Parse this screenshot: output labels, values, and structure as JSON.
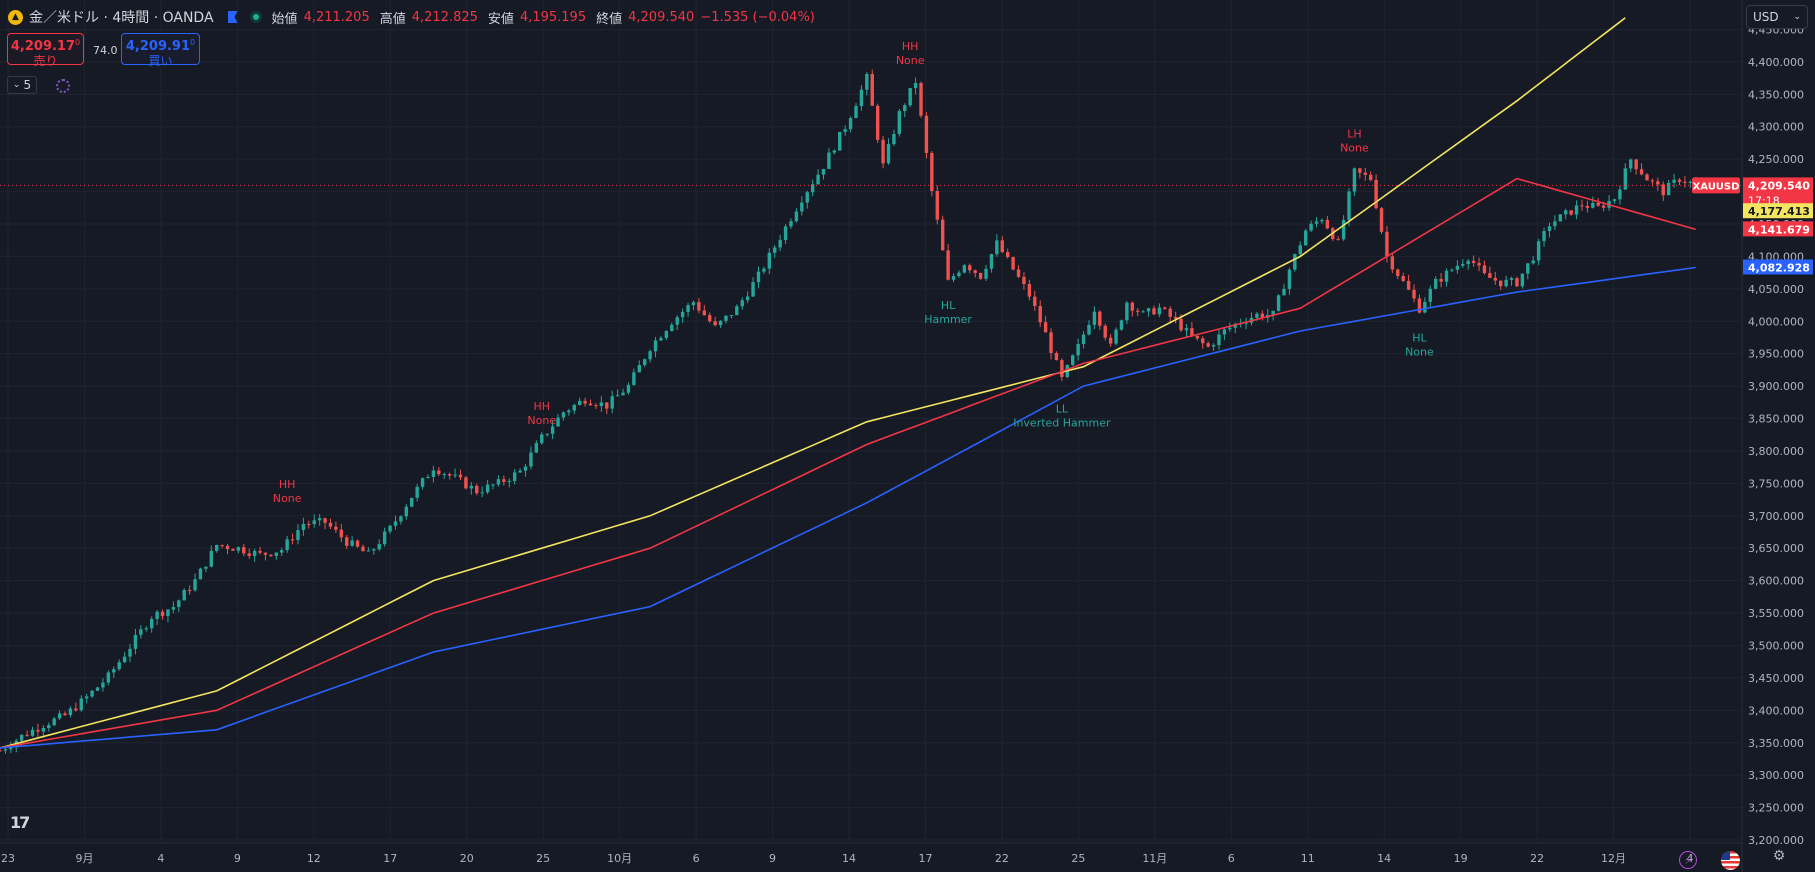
{
  "legend": {
    "symbol_icon": "gold-coin-icon",
    "title": "金／米ドル · 4時間 · OANDA",
    "open_label": "始値",
    "open": "4,211.205",
    "high_label": "高値",
    "high": "4,212.825",
    "low_label": "安値",
    "low": "4,195.195",
    "close_label": "終値",
    "close": "4,209.540",
    "change": "−1.535 (−0.04%)"
  },
  "trade": {
    "sell_price": "4,209.17",
    "sell_sup": "0",
    "sell_label": "売り",
    "spread": "74.0",
    "buy_price": "4,209.91",
    "buy_sup": "0",
    "buy_label": "買い"
  },
  "indicators_button": {
    "count": "5"
  },
  "currency": {
    "label": "USD"
  },
  "logo": "17",
  "colors": {
    "background": "#161a25",
    "grid": "#1f2431",
    "up": "#26a69a",
    "down": "#ef5350",
    "ma_fast": "#f4e55f",
    "ma_mid": "#f23645",
    "ma_slow": "#2962ff",
    "text": "#b2b5be"
  },
  "chart_data": {
    "type": "candlestick",
    "symbol": "XAUUSD",
    "interval": "4時間",
    "ylim": [
      3180,
      4480
    ],
    "y_ticks": [
      3200,
      3250,
      3300,
      3350,
      3400,
      3450,
      3500,
      3550,
      3600,
      3650,
      3700,
      3750,
      3800,
      3850,
      3900,
      3950,
      4000,
      4050,
      4100,
      4150,
      4200,
      4250,
      4300,
      4350,
      4400,
      4450
    ],
    "x_ticks": [
      "23",
      "9月",
      "4",
      "9",
      "12",
      "17",
      "20",
      "25",
      "10月",
      "6",
      "9",
      "14",
      "17",
      "22",
      "25",
      "11月",
      "6",
      "11",
      "14",
      "19",
      "22",
      "12月",
      "4"
    ],
    "price_trend": [
      [
        0,
        3338
      ],
      [
        4,
        3360
      ],
      [
        8,
        3378
      ],
      [
        12,
        3392
      ],
      [
        16,
        3420
      ],
      [
        20,
        3452
      ],
      [
        24,
        3498
      ],
      [
        28,
        3545
      ],
      [
        32,
        3560
      ],
      [
        36,
        3600
      ],
      [
        40,
        3655
      ],
      [
        44,
        3650
      ],
      [
        48,
        3640
      ],
      [
        52,
        3648
      ],
      [
        56,
        3688
      ],
      [
        60,
        3690
      ],
      [
        64,
        3660
      ],
      [
        68,
        3640
      ],
      [
        72,
        3680
      ],
      [
        76,
        3730
      ],
      [
        80,
        3775
      ],
      [
        84,
        3758
      ],
      [
        88,
        3738
      ],
      [
        92,
        3750
      ],
      [
        96,
        3768
      ],
      [
        100,
        3820
      ],
      [
        104,
        3860
      ],
      [
        108,
        3880
      ],
      [
        112,
        3870
      ],
      [
        116,
        3900
      ],
      [
        120,
        3960
      ],
      [
        124,
        4000
      ],
      [
        128,
        4030
      ],
      [
        132,
        3990
      ],
      [
        136,
        4020
      ],
      [
        140,
        4070
      ],
      [
        144,
        4130
      ],
      [
        148,
        4190
      ],
      [
        152,
        4240
      ],
      [
        156,
        4300
      ],
      [
        160,
        4375
      ],
      [
        163,
        4240
      ],
      [
        166,
        4320
      ],
      [
        169,
        4370
      ],
      [
        172,
        4200
      ],
      [
        175,
        4060
      ],
      [
        178,
        4090
      ],
      [
        181,
        4070
      ],
      [
        184,
        4120
      ],
      [
        187,
        4080
      ],
      [
        190,
        4040
      ],
      [
        193,
        3980
      ],
      [
        196,
        3910
      ],
      [
        199,
        3960
      ],
      [
        202,
        4020
      ],
      [
        205,
        3960
      ],
      [
        208,
        4030
      ],
      [
        211,
        4010
      ],
      [
        214,
        4020
      ],
      [
        217,
        4000
      ],
      [
        220,
        3975
      ],
      [
        223,
        3960
      ],
      [
        226,
        3985
      ],
      [
        229,
        4000
      ],
      [
        232,
        4010
      ],
      [
        235,
        4010
      ],
      [
        238,
        4080
      ],
      [
        241,
        4140
      ],
      [
        244,
        4160
      ],
      [
        247,
        4120
      ],
      [
        250,
        4230
      ],
      [
        253,
        4220
      ],
      [
        256,
        4100
      ],
      [
        259,
        4060
      ],
      [
        262,
        4020
      ],
      [
        265,
        4060
      ],
      [
        268,
        4080
      ],
      [
        271,
        4100
      ],
      [
        274,
        4070
      ],
      [
        277,
        4060
      ],
      [
        280,
        4060
      ],
      [
        283,
        4100
      ],
      [
        286,
        4150
      ],
      [
        289,
        4165
      ],
      [
        292,
        4180
      ],
      [
        295,
        4175
      ],
      [
        298,
        4190
      ],
      [
        301,
        4250
      ],
      [
        304,
        4220
      ],
      [
        307,
        4200
      ],
      [
        310,
        4220
      ],
      [
        313,
        4210
      ]
    ],
    "series": [
      {
        "name": "",
        "color": "#f4e55f",
        "points": [
          [
            0,
            3342
          ],
          [
            40,
            3430
          ],
          [
            80,
            3600
          ],
          [
            120,
            3700
          ],
          [
            160,
            3845
          ],
          [
            200,
            3930
          ],
          [
            240,
            4100
          ],
          [
            280,
            4340
          ],
          [
            300,
            4468
          ]
        ]
      },
      {
        "name": "",
        "color": "#f23645",
        "points": [
          [
            0,
            3342
          ],
          [
            40,
            3400
          ],
          [
            80,
            3550
          ],
          [
            120,
            3650
          ],
          [
            160,
            3810
          ],
          [
            200,
            3935
          ],
          [
            240,
            4020
          ],
          [
            280,
            4220
          ],
          [
            313,
            4141.679
          ]
        ]
      },
      {
        "name": "",
        "color": "#2962ff",
        "points": [
          [
            0,
            3342
          ],
          [
            40,
            3370
          ],
          [
            80,
            3490
          ],
          [
            120,
            3560
          ],
          [
            160,
            3720
          ],
          [
            200,
            3900
          ],
          [
            240,
            3985
          ],
          [
            280,
            4045
          ],
          [
            313,
            4082.928
          ]
        ]
      }
    ],
    "price_labels": [
      {
        "text": "4,209.540",
        "sub": "17:18",
        "value": 4209.54,
        "color": "#f23645"
      },
      {
        "text": "4,177.413",
        "value": 4177.413,
        "color": "#f4e55f"
      },
      {
        "text": "4,141.679",
        "value": 4141.679,
        "color": "#f23645"
      },
      {
        "text": "4,082.928",
        "value": 4082.928,
        "color": "#2962ff"
      }
    ],
    "symbol_tag": "XAUUSD",
    "annotations": [
      {
        "line1": "HH",
        "line2": "None",
        "x": 53,
        "value": 3700,
        "pos": "above",
        "color": "#f23645"
      },
      {
        "line1": "HH",
        "line2": "None",
        "x": 100,
        "value": 3820,
        "pos": "above",
        "color": "#f23645"
      },
      {
        "line1": "HH",
        "line2": "None",
        "x": 168,
        "value": 4375,
        "pos": "above",
        "color": "#f23645"
      },
      {
        "line1": "HL",
        "line2": "Hammer",
        "x": 175,
        "value": 4050,
        "pos": "below",
        "color": "#26a69a"
      },
      {
        "line1": "LL",
        "line2": "Inverted Hammer",
        "x": 196,
        "value": 3890,
        "pos": "below",
        "color": "#26a69a"
      },
      {
        "line1": "LH",
        "line2": "None",
        "x": 250,
        "value": 4240,
        "pos": "above",
        "color": "#f23645"
      },
      {
        "line1": "HL",
        "line2": "None",
        "x": 262,
        "value": 4000,
        "pos": "below",
        "color": "#26a69a"
      }
    ]
  }
}
